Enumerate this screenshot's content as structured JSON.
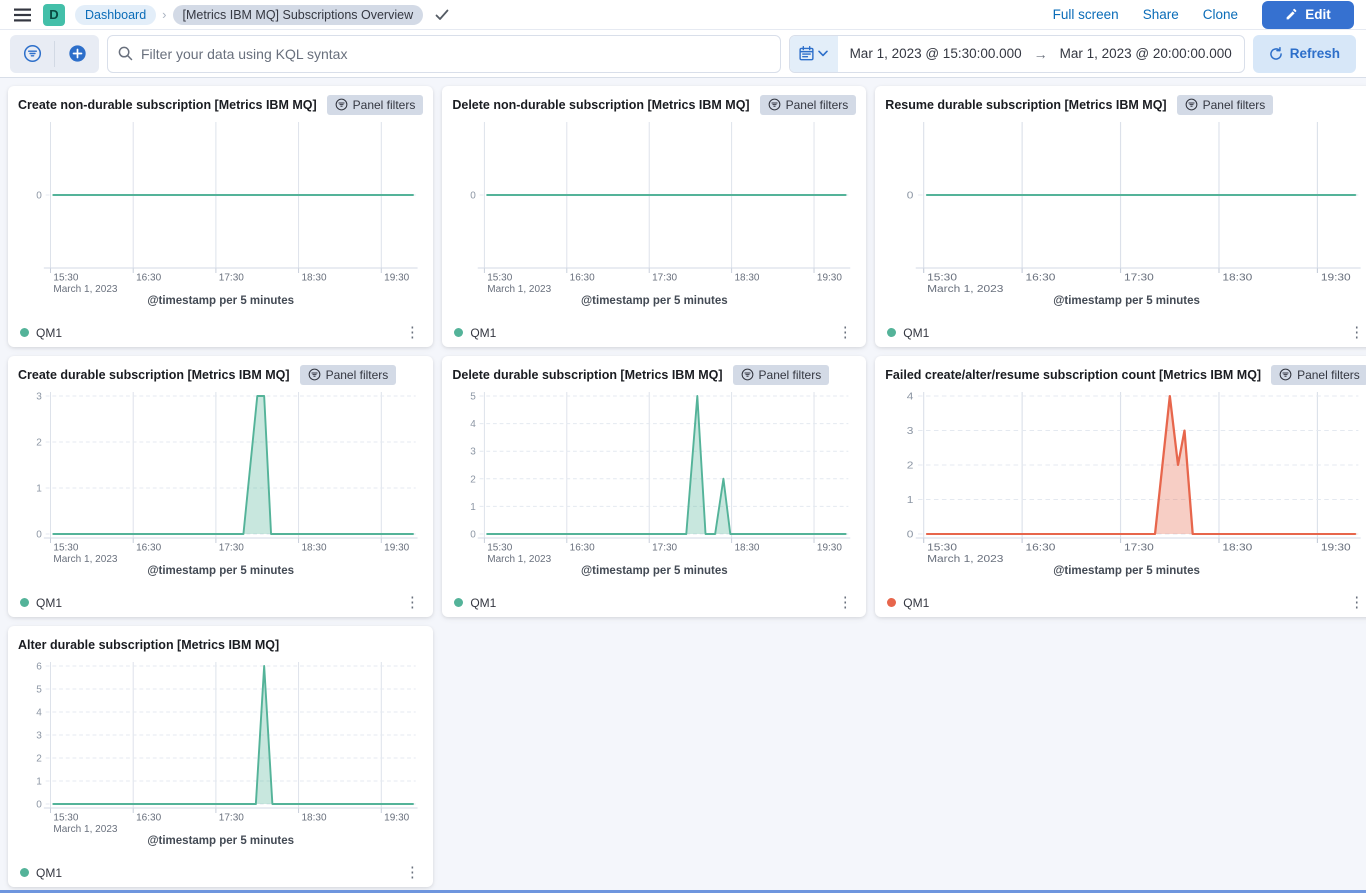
{
  "colors": {
    "primary_button": "#3671D0",
    "link_blue": "#0A6CB8",
    "series_green": "#54B399",
    "series_red": "#E7664C",
    "badge_gray": "#D3DAE6",
    "logo_teal": "#43BFA9"
  },
  "top_nav": {
    "logo_letter": "D",
    "breadcrumb_root": "Dashboard",
    "breadcrumb_current": "[Metrics IBM MQ] Subscriptions Overview",
    "full_screen_label": "Full screen",
    "share_label": "Share",
    "clone_label": "Clone",
    "edit_label": "Edit"
  },
  "query_bar": {
    "search_placeholder": "Filter your data using KQL syntax",
    "date_start": "Mar 1, 2023 @ 15:30:00.000",
    "date_end": "Mar 1, 2023 @ 20:00:00.000",
    "refresh_label": "Refresh"
  },
  "panel_filters_label": "Panel filters",
  "chart_data": [
    {
      "type": "area",
      "title": "Create non-durable subscription [Metrics IBM MQ]",
      "panel_filters": true,
      "xlabel": "@timestamp per 5 minutes",
      "x_ticks": [
        "15:30",
        "16:30",
        "17:30",
        "18:30",
        "19:30"
      ],
      "x_sub_label": "March 1, 2023",
      "x_range_minutes": [
        0,
        265
      ],
      "ymax": 0,
      "y_ticks": [
        0
      ],
      "legend_position": "bottom",
      "series": [
        {
          "name": "QM1",
          "color": "#54B399",
          "points": [
            [
              2,
              0
            ],
            [
              263,
              0
            ]
          ]
        }
      ]
    },
    {
      "type": "area",
      "title": "Delete non-durable subscription [Metrics IBM MQ]",
      "panel_filters": true,
      "xlabel": "@timestamp per 5 minutes",
      "x_ticks": [
        "15:30",
        "16:30",
        "17:30",
        "18:30",
        "19:30"
      ],
      "x_sub_label": "March 1, 2023",
      "x_range_minutes": [
        0,
        265
      ],
      "ymax": 0,
      "y_ticks": [
        0
      ],
      "legend_position": "bottom",
      "series": [
        {
          "name": "QM1",
          "color": "#54B399",
          "points": [
            [
              2,
              0
            ],
            [
              263,
              0
            ]
          ]
        }
      ]
    },
    {
      "type": "area",
      "title": "Resume durable subscription [Metrics IBM MQ]",
      "panel_filters": true,
      "xlabel": "@timestamp per 5 minutes",
      "x_ticks": [
        "15:30",
        "16:30",
        "17:30",
        "18:30",
        "19:30"
      ],
      "x_sub_label": "March 1, 2023",
      "x_range_minutes": [
        0,
        265
      ],
      "ymax": 0,
      "y_ticks": [
        0
      ],
      "legend_position": "bottom",
      "series": [
        {
          "name": "QM1",
          "color": "#54B399",
          "points": [
            [
              2,
              0
            ],
            [
              263,
              0
            ]
          ]
        }
      ]
    },
    {
      "type": "area",
      "title": "Create durable subscription [Metrics IBM MQ]",
      "panel_filters": true,
      "xlabel": "@timestamp per 5 minutes",
      "x_ticks": [
        "15:30",
        "16:30",
        "17:30",
        "18:30",
        "19:30"
      ],
      "x_sub_label": "March 1, 2023",
      "x_range_minutes": [
        0,
        265
      ],
      "ymax": 3,
      "y_ticks": [
        0,
        1,
        2,
        3
      ],
      "legend_position": "bottom",
      "series": [
        {
          "name": "QM1",
          "color": "#54B399",
          "points": [
            [
              2,
              0
            ],
            [
              140,
              0
            ],
            [
              150,
              3
            ],
            [
              155,
              3
            ],
            [
              160,
              0
            ],
            [
              263,
              0
            ]
          ]
        }
      ]
    },
    {
      "type": "area",
      "title": "Delete durable subscription [Metrics IBM MQ]",
      "panel_filters": true,
      "xlabel": "@timestamp per 5 minutes",
      "x_ticks": [
        "15:30",
        "16:30",
        "17:30",
        "18:30",
        "19:30"
      ],
      "x_sub_label": "March 1, 2023",
      "x_range_minutes": [
        0,
        265
      ],
      "ymax": 5,
      "y_ticks": [
        0,
        1,
        2,
        3,
        4,
        5
      ],
      "legend_position": "bottom",
      "series": [
        {
          "name": "QM1",
          "color": "#54B399",
          "points": [
            [
              2,
              0
            ],
            [
              147,
              0
            ],
            [
              155,
              5
            ],
            [
              161,
              0
            ],
            [
              168,
              0
            ],
            [
              174,
              2
            ],
            [
              179,
              0
            ],
            [
              263,
              0
            ]
          ]
        }
      ]
    },
    {
      "type": "area",
      "title": "Failed create/alter/resume subscription count [Metrics IBM MQ]",
      "panel_filters": true,
      "xlabel": "@timestamp per 5 minutes",
      "x_ticks": [
        "15:30",
        "16:30",
        "17:30",
        "18:30",
        "19:30"
      ],
      "x_sub_label": "March 1, 2023",
      "x_range_minutes": [
        0,
        265
      ],
      "ymax": 4,
      "y_ticks": [
        0,
        1,
        2,
        3,
        4
      ],
      "legend_position": "bottom",
      "series": [
        {
          "name": "QM1",
          "color": "#E7664C",
          "points": [
            [
              2,
              0
            ],
            [
              141,
              0
            ],
            [
              150,
              4
            ],
            [
              155,
              2
            ],
            [
              159,
              3
            ],
            [
              164,
              0
            ],
            [
              263,
              0
            ]
          ]
        }
      ]
    },
    {
      "type": "area",
      "title": "Alter durable subscription [Metrics IBM MQ]",
      "panel_filters": false,
      "xlabel": "@timestamp per 5 minutes",
      "x_ticks": [
        "15:30",
        "16:30",
        "17:30",
        "18:30",
        "19:30"
      ],
      "x_sub_label": "March 1, 2023",
      "x_range_minutes": [
        0,
        265
      ],
      "ymax": 6,
      "y_ticks": [
        0,
        1,
        2,
        3,
        4,
        5,
        6
      ],
      "legend_position": "bottom",
      "series": [
        {
          "name": "QM1",
          "color": "#54B399",
          "points": [
            [
              2,
              0
            ],
            [
              149,
              0
            ],
            [
              155,
              6
            ],
            [
              161,
              0
            ],
            [
              263,
              0
            ]
          ]
        }
      ]
    }
  ]
}
